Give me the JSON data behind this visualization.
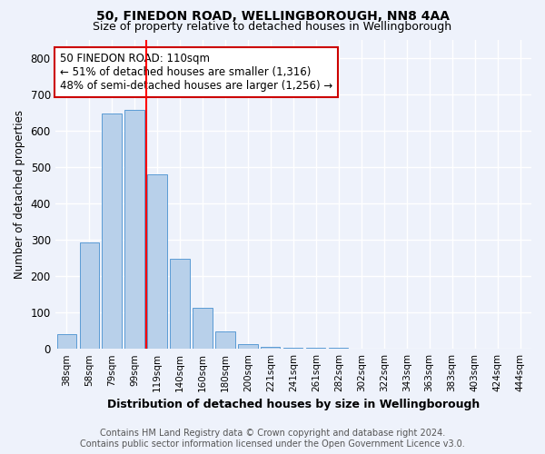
{
  "title_line1": "50, FINEDON ROAD, WELLINGBOROUGH, NN8 4AA",
  "title_line2": "Size of property relative to detached houses in Wellingborough",
  "xlabel": "Distribution of detached houses by size in Wellingborough",
  "ylabel": "Number of detached properties",
  "footer_line1": "Contains HM Land Registry data © Crown copyright and database right 2024.",
  "footer_line2": "Contains public sector information licensed under the Open Government Licence v3.0.",
  "bar_labels": [
    "38sqm",
    "58sqm",
    "79sqm",
    "99sqm",
    "119sqm",
    "140sqm",
    "160sqm",
    "180sqm",
    "200sqm",
    "221sqm",
    "241sqm",
    "261sqm",
    "282sqm",
    "302sqm",
    "322sqm",
    "343sqm",
    "363sqm",
    "383sqm",
    "403sqm",
    "424sqm",
    "444sqm"
  ],
  "bar_values": [
    40,
    293,
    648,
    657,
    480,
    248,
    113,
    47,
    12,
    5,
    3,
    2,
    2,
    1,
    1,
    1,
    1,
    1,
    0,
    1,
    0
  ],
  "bar_color": "#b8d0ea",
  "bar_edge_color": "#5b9bd5",
  "vline_x": 3.5,
  "vline_color": "red",
  "annotation_text": "50 FINEDON ROAD: 110sqm\n← 51% of detached houses are smaller (1,316)\n48% of semi-detached houses are larger (1,256) →",
  "annotation_box_color": "white",
  "annotation_edge_color": "#cc0000",
  "ylim": [
    0,
    850
  ],
  "yticks": [
    0,
    100,
    200,
    300,
    400,
    500,
    600,
    700,
    800
  ],
  "bg_color": "#eef2fb",
  "grid_color": "white",
  "title_fontsize": 10,
  "subtitle_fontsize": 9,
  "annotation_fontsize": 8.5,
  "footer_fontsize": 7,
  "bar_width": 0.85
}
